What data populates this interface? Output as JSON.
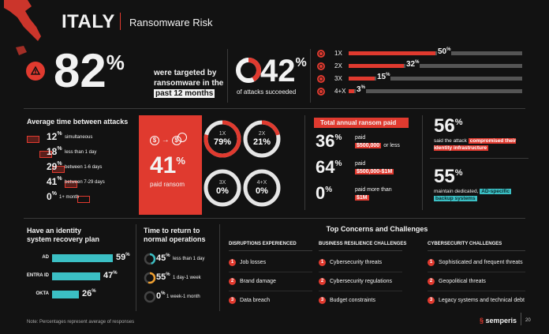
{
  "header": {
    "country": "ITALY",
    "subtitle": "Ransomware Risk"
  },
  "stat_targeted": {
    "value": "82",
    "unit": "%",
    "text_line1": "were targeted by",
    "text_line2": "ransomware in the",
    "text_line3": "past 12 months"
  },
  "stat_succeeded": {
    "value": "42",
    "unit": "%",
    "text": "of attacks succeeded",
    "fraction": 0.42
  },
  "attack_freq": [
    {
      "label": "1X",
      "value": "50",
      "fraction": 0.5
    },
    {
      "label": "2X",
      "value": "32",
      "fraction": 0.32
    },
    {
      "label": "3X",
      "value": "15",
      "fraction": 0.15
    },
    {
      "label": "4+X",
      "value": "3",
      "fraction": 0.03
    }
  ],
  "avg_time": {
    "title": "Average time between attacks",
    "rows": [
      {
        "value": "12",
        "label": "simultaneous"
      },
      {
        "value": "18",
        "label": "less than 1 day"
      },
      {
        "value": "29",
        "label": "between 1-6 days"
      },
      {
        "value": "41",
        "label": "between 7-29 days"
      },
      {
        "value": "0",
        "label": "1+ month"
      }
    ]
  },
  "paid_ransom": {
    "value": "41",
    "label": "paid ransom",
    "rings": [
      {
        "label": "1X",
        "value": "79",
        "fraction": 0.79
      },
      {
        "label": "2X",
        "value": "21",
        "fraction": 0.21
      },
      {
        "label": "3X",
        "value": "0",
        "fraction": 0
      },
      {
        "label": "4+X",
        "value": "0",
        "fraction": 0
      }
    ]
  },
  "annual_ransom": {
    "title": "Total annual ransom paid",
    "rows": [
      {
        "value": "36",
        "pre": "paid",
        "amount": "$500,000",
        "post": "or less"
      },
      {
        "value": "64",
        "pre": "paid",
        "amount": "$500,000-$1M",
        "post": ""
      },
      {
        "value": "0",
        "pre": "paid more than",
        "amount": "$1M",
        "post": ""
      }
    ]
  },
  "stat_56": {
    "value": "56",
    "text1": "said the attack",
    "highlight": "compromised their identity infrastructure"
  },
  "stat_55": {
    "value": "55",
    "text1": "maintain dedicated,",
    "highlight1": "AD-specific",
    "highlight2": "backup systems"
  },
  "recovery_plan": {
    "title_line1": "Have an identity",
    "title_line2": "system recovery plan",
    "bars": [
      {
        "label": "AD",
        "value": "59",
        "fraction": 0.59
      },
      {
        "label": "ENTRA ID",
        "value": "47",
        "fraction": 0.47
      },
      {
        "label": "OKTA",
        "value": "26",
        "fraction": 0.26
      }
    ]
  },
  "return_time": {
    "title_line1": "Time to return to",
    "title_line2": "normal operations",
    "rows": [
      {
        "value": "45",
        "label": "less than 1 day",
        "color": "#3bbfc4",
        "fraction": 0.45
      },
      {
        "value": "55",
        "label": "1 day-1 week",
        "color": "#f0a030",
        "fraction": 0.55
      },
      {
        "value": "0",
        "label": "1 week-1 month",
        "color": "#e03a2f",
        "fraction": 0
      }
    ]
  },
  "concerns": {
    "title": "Top Concerns and Challenges",
    "columns": [
      {
        "heading": "DISRUPTIONS EXPERIENCED",
        "items": [
          "Job losses",
          "Brand damage",
          "Data breach"
        ]
      },
      {
        "heading": "BUSINESS RESILIENCE CHALLENGES",
        "items": [
          "Cybersecurity threats",
          "Cybersecurity regulations",
          "Budget constraints"
        ]
      },
      {
        "heading": "CYBERSECURITY CHALLENGES",
        "items": [
          "Sophisticated and frequent threats",
          "Geopolitical threats",
          "Legacy systems and technical debt"
        ]
      }
    ]
  },
  "footer": {
    "note": "Note: Percentages represent average of responses",
    "brand": "semperis",
    "page": "20"
  },
  "colors": {
    "accent": "#e03a2f",
    "teal": "#3bbfc4",
    "bg": "#121212"
  }
}
